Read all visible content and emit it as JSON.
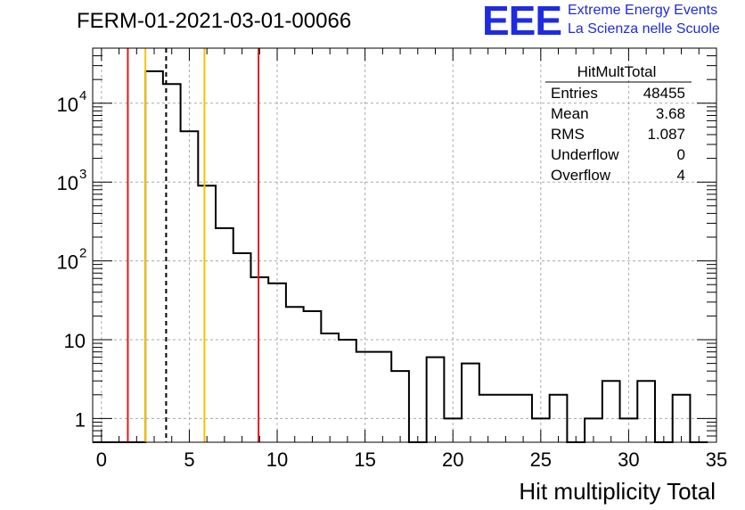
{
  "title": "FERM-01-2021-03-01-00066",
  "logo": {
    "mark": "EEE",
    "line1": "Extreme Energy Events",
    "line2": "La Scienza nelle Scuole",
    "color": "#1f2be0"
  },
  "stats": {
    "name": "HitMultTotal",
    "rows": [
      {
        "label": "Entries",
        "value": "48455"
      },
      {
        "label": "Mean",
        "value": "3.68"
      },
      {
        "label": "RMS",
        "value": "1.087"
      },
      {
        "label": "Underflow",
        "value": "0"
      },
      {
        "label": "Overflow",
        "value": "4"
      }
    ]
  },
  "chart_data": {
    "type": "histogram",
    "xlabel": "Hit multiplicity Total",
    "ylabel": "",
    "xlim": [
      -0.5,
      35
    ],
    "ylim": [
      0.5,
      50000
    ],
    "log_y": true,
    "grid": true,
    "x_ticks": [
      "0",
      "5",
      "10",
      "15",
      "20",
      "25",
      "30",
      "35"
    ],
    "y_ticks": [
      {
        "value": 1,
        "label": "1"
      },
      {
        "value": 10,
        "label": "10"
      },
      {
        "value": 100,
        "label": "10",
        "exp": "2"
      },
      {
        "value": 1000,
        "label": "10",
        "exp": "3"
      },
      {
        "value": 10000,
        "label": "10",
        "exp": "4"
      }
    ],
    "bin_start": -0.5,
    "bin_width": 1,
    "values": [
      0,
      0,
      0,
      25500,
      17500,
      4400,
      900,
      260,
      125,
      62,
      52,
      26,
      23,
      12,
      10,
      7,
      7,
      4,
      0,
      6,
      1,
      5,
      2,
      2,
      2,
      1,
      2,
      0,
      1,
      3,
      1,
      3,
      0,
      2,
      0
    ],
    "lines": [
      {
        "x": 1.5,
        "color": "#e11a1a",
        "style": "solid"
      },
      {
        "x": 2.5,
        "color": "#f5c400",
        "style": "solid"
      },
      {
        "x": 3.68,
        "color": "#000000",
        "style": "dashed"
      },
      {
        "x": 5.86,
        "color": "#f5c400",
        "style": "solid"
      },
      {
        "x": 8.94,
        "color": "#e11a1a",
        "style": "solid"
      }
    ]
  }
}
